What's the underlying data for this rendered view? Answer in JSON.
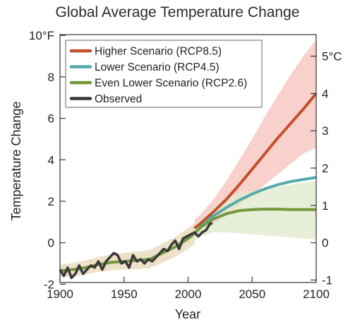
{
  "chart_data": {
    "type": "line",
    "title": "Global Average Temperature Change",
    "xlabel": "Year",
    "ylabel": "Temperature Change",
    "xlim": [
      1900,
      2100
    ],
    "ylim": [
      -2,
      10
    ],
    "x_ticks": [
      "1900",
      "1950",
      "2000",
      "2050",
      "2100"
    ],
    "y_ticks_left": [
      "10°F",
      "8",
      "6",
      "4",
      "2",
      "0",
      "-2"
    ],
    "y_ticks_right": [
      "5°C",
      "4",
      "3",
      "2",
      "1",
      "0",
      "-1"
    ],
    "right_axis_unit": "°C",
    "grid": false,
    "legend_position": "top-left",
    "series": [
      {
        "name": "Higher Scenario (RCP8.5)",
        "color": "#c2502f",
        "band_color": "#f6c1bc",
        "x": [
          2005,
          2010,
          2020,
          2030,
          2040,
          2050,
          2060,
          2070,
          2080,
          2090,
          2100
        ],
        "values": [
          0.7,
          0.95,
          1.5,
          2.1,
          2.8,
          3.55,
          4.3,
          5.05,
          5.75,
          6.45,
          7.2
        ],
        "lower": [
          0.3,
          0.5,
          0.9,
          1.3,
          1.8,
          2.3,
          2.8,
          3.3,
          3.8,
          4.3,
          4.6
        ],
        "upper": [
          1.1,
          1.4,
          2.1,
          3.0,
          4.0,
          5.0,
          6.1,
          7.1,
          8.1,
          9.0,
          9.8
        ]
      },
      {
        "name": "Lower Scenario (RCP4.5)",
        "color": "#57a9aa",
        "x": [
          2005,
          2010,
          2020,
          2030,
          2040,
          2050,
          2060,
          2070,
          2080,
          2090,
          2100
        ],
        "values": [
          0.7,
          0.9,
          1.3,
          1.7,
          2.05,
          2.35,
          2.6,
          2.8,
          2.95,
          3.05,
          3.15
        ]
      },
      {
        "name": "Even Lower Scenario (RCP2.6)",
        "color": "#74983b",
        "band_color": "#e1ebcf",
        "x_hist": [
          1900,
          1910,
          1920,
          1930,
          1940,
          1950,
          1960,
          1970,
          1980,
          1990,
          2000,
          2005
        ],
        "values_hist": [
          -1.35,
          -1.3,
          -1.2,
          -1.05,
          -0.95,
          -0.9,
          -0.85,
          -0.8,
          -0.5,
          -0.2,
          0.2,
          0.45
        ],
        "x": [
          2005,
          2010,
          2020,
          2030,
          2040,
          2050,
          2060,
          2070,
          2080,
          2090,
          2100
        ],
        "values": [
          0.45,
          0.75,
          1.15,
          1.4,
          1.55,
          1.6,
          1.62,
          1.62,
          1.6,
          1.6,
          1.6
        ],
        "lower": [
          0.1,
          0.3,
          0.5,
          0.5,
          0.45,
          0.4,
          0.35,
          0.3,
          0.25,
          0.2,
          0.15
        ],
        "upper": [
          0.9,
          1.1,
          1.7,
          2.2,
          2.4,
          2.5,
          2.6,
          2.7,
          2.8,
          2.9,
          3.0
        ]
      },
      {
        "name": "Observed",
        "color": "#3a3a3a",
        "x": [
          1900,
          1903,
          1906,
          1909,
          1912,
          1915,
          1918,
          1921,
          1924,
          1927,
          1930,
          1933,
          1936,
          1939,
          1942,
          1945,
          1948,
          1951,
          1954,
          1957,
          1960,
          1963,
          1966,
          1969,
          1972,
          1975,
          1978,
          1981,
          1984,
          1987,
          1990,
          1993,
          1996,
          1999,
          2002,
          2005,
          2008,
          2011,
          2014,
          2017,
          2019
        ],
        "values": [
          -1.3,
          -1.6,
          -1.2,
          -1.7,
          -1.5,
          -1.1,
          -1.5,
          -1.3,
          -1.1,
          -1.2,
          -0.9,
          -1.3,
          -0.9,
          -0.7,
          -0.5,
          -0.6,
          -1.0,
          -0.9,
          -1.2,
          -0.6,
          -0.9,
          -0.8,
          -1.0,
          -0.8,
          -0.9,
          -0.7,
          -0.5,
          -0.3,
          -0.4,
          -0.1,
          0.1,
          -0.3,
          0.2,
          0.3,
          0.4,
          0.5,
          0.3,
          0.5,
          0.6,
          0.9,
          0.95
        ]
      }
    ]
  }
}
